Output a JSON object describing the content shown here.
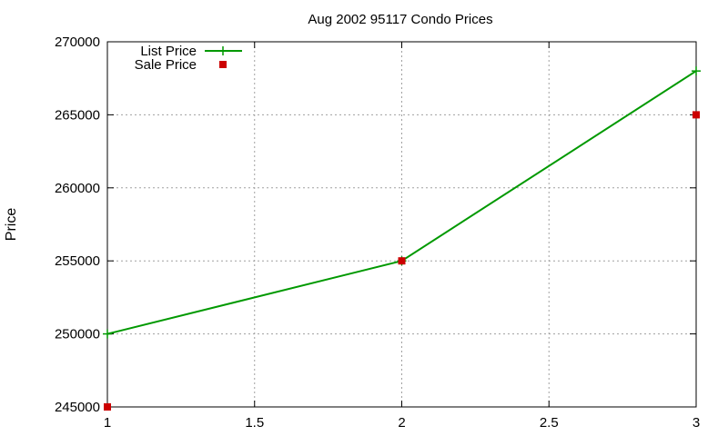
{
  "chart_data": {
    "type": "line",
    "title": "Aug 2002 95117 Condo Prices",
    "xlabel": "",
    "ylabel": "Price",
    "xlim": [
      1,
      3
    ],
    "ylim": [
      245000,
      270000
    ],
    "x_ticks": [
      1,
      1.5,
      2,
      2.5,
      3
    ],
    "x_tick_labels": [
      "1",
      "1.5",
      "2",
      "2.5",
      "3"
    ],
    "y_ticks": [
      245000,
      250000,
      255000,
      260000,
      265000,
      270000
    ],
    "y_tick_labels": [
      "245000",
      "250000",
      "255000",
      "260000",
      "265000",
      "270000"
    ],
    "grid": true,
    "legend_position": "top-left",
    "series": [
      {
        "name": "List Price",
        "style": "linespoints",
        "marker": "plus",
        "color": "#009900",
        "x": [
          1,
          2,
          3
        ],
        "y": [
          250000,
          255000,
          268000
        ]
      },
      {
        "name": "Sale Price",
        "style": "points",
        "marker": "square",
        "color": "#cc0000",
        "x": [
          1,
          2,
          3
        ],
        "y": [
          245000,
          255000,
          265000
        ]
      }
    ]
  }
}
